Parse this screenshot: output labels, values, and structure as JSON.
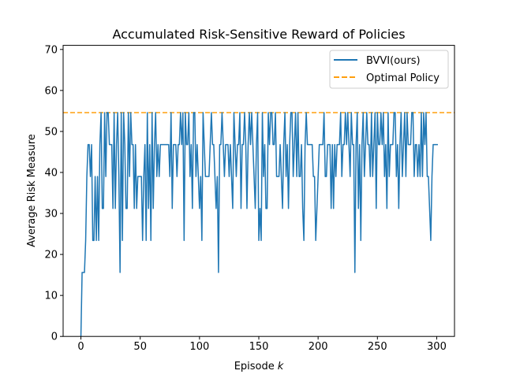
{
  "chart_data": {
    "type": "line",
    "title": "Accumulated Risk-Sensitive Reward of Policies",
    "xlabel": "Episode",
    "xlabel_var": "k",
    "ylabel": "Average Risk Measure",
    "xlim": [
      -15,
      315
    ],
    "ylim": [
      0,
      71
    ],
    "xticks": [
      0,
      50,
      100,
      150,
      200,
      250,
      300
    ],
    "yticks": [
      0,
      10,
      20,
      30,
      40,
      50,
      60,
      70
    ],
    "grid": false,
    "legend_position": "top-right",
    "series": [
      {
        "name": "BVVI(ours)",
        "color": "#1f77b4",
        "style": "solid",
        "x_start": 0,
        "x_step": 1,
        "values": [
          0,
          15.6,
          15.6,
          15.6,
          23.4,
          39,
          46.8,
          46.8,
          39,
          46.8,
          23.4,
          23.4,
          39,
          23.4,
          39,
          23.4,
          46.8,
          54.6,
          31.2,
          31.2,
          54.6,
          39,
          54.6,
          54.6,
          46.8,
          46.8,
          46.8,
          31.2,
          54.6,
          31.2,
          46.8,
          54.6,
          39,
          15.6,
          54.6,
          23.4,
          54.6,
          46.8,
          31.2,
          31.2,
          54.6,
          39,
          54.6,
          46.8,
          46.8,
          31.2,
          46.8,
          31.2,
          39,
          39,
          39,
          39,
          23.4,
          39,
          46.8,
          23.4,
          54.6,
          31.2,
          46.8,
          23.4,
          54.6,
          31.2,
          46.8,
          54.6,
          39,
          46.8,
          39,
          46.8,
          46.8,
          46.8,
          46.8,
          46.8,
          46.8,
          46.8,
          46.8,
          39,
          54.6,
          31.2,
          46.8,
          46.8,
          46.8,
          39,
          46.8,
          46.8,
          54.6,
          46.8,
          54.6,
          23.4,
          54.6,
          46.8,
          46.8,
          54.6,
          39,
          46.8,
          31.2,
          54.6,
          54.6,
          39,
          46.8,
          39,
          31.2,
          39,
          23.4,
          54.6,
          46.8,
          39,
          39,
          39,
          39,
          46.8,
          54.6,
          46.8,
          46.8,
          39,
          31.2,
          39,
          15.6,
          46.8,
          46.8,
          54.6,
          46.8,
          39,
          46.8,
          46.8,
          46.8,
          39,
          46.8,
          39,
          31.2,
          54.6,
          46.8,
          39,
          46.8,
          46.8,
          54.6,
          31.2,
          46.8,
          46.8,
          54.6,
          46.8,
          31.2,
          46.8,
          54.6,
          46.8,
          54.6,
          46.8,
          39,
          31.2,
          46.8,
          54.6,
          23.4,
          31.2,
          23.4,
          54.6,
          39,
          46.8,
          31.2,
          31.2,
          54.6,
          46.8,
          54.6,
          54.6,
          46.8,
          46.8,
          54.6,
          39,
          39,
          39,
          46.8,
          39,
          31.2,
          46.8,
          54.6,
          39,
          46.8,
          31.2,
          46.8,
          54.6,
          54.6,
          39,
          46.8,
          54.6,
          39,
          54.6,
          39,
          39,
          46.8,
          31.2,
          23.4,
          46.8,
          54.6,
          46.8,
          46.8,
          46.8,
          46.8,
          46.8,
          39,
          39,
          23.4,
          31.2,
          39,
          46.8,
          46.8,
          46.8,
          46.8,
          54.6,
          39,
          39,
          46.8,
          46.8,
          46.8,
          31.2,
          46.8,
          31.2,
          46.8,
          39,
          46.8,
          46.8,
          46.8,
          54.6,
          39,
          46.8,
          46.8,
          54.6,
          46.8,
          54.6,
          46.8,
          39,
          54.6,
          46.8,
          46.8,
          15.6,
          46.8,
          54.6,
          31.2,
          46.8,
          23.4,
          46.8,
          54.6,
          39,
          46.8,
          54.6,
          46.8,
          46.8,
          39,
          54.6,
          39,
          46.8,
          54.6,
          31.2,
          54.6,
          46.8,
          46.8,
          54.6,
          46.8,
          54.6,
          39,
          46.8,
          31.2,
          54.6,
          39,
          46.8,
          46.8,
          46.8,
          54.6,
          54.6,
          39,
          46.8,
          31.2,
          46.8,
          54.6,
          39,
          46.8,
          54.6,
          39,
          54.6,
          46.8,
          46.8,
          46.8,
          54.6,
          54.6,
          39,
          46.8,
          46.8,
          39,
          46.8,
          39,
          54.6,
          39,
          54.6,
          46.8,
          54.6,
          39,
          39,
          31.2,
          23.4,
          39,
          46.8,
          46.8,
          46.8,
          46.8,
          46.8
        ]
      },
      {
        "name": "Optimal Policy",
        "color": "#ff9f0e",
        "style": "dashed",
        "constant": 54.6
      }
    ]
  }
}
